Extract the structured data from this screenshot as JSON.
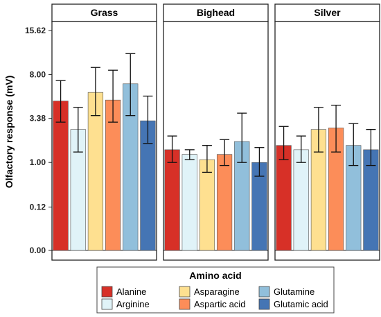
{
  "chart_data": {
    "type": "bar",
    "facets": [
      "Grass",
      "Bighead",
      "Silver"
    ],
    "ylabel": "Olfactory response (mV)",
    "y_scale": "transformed (ticks as printed)",
    "y_ticks": [
      "0.00",
      "0.12",
      "1.00",
      "3.38",
      "8.00",
      "15.62"
    ],
    "legend_title": "Amino acid",
    "legend_position": "bottom",
    "series": [
      {
        "name": "Alanine",
        "color": "#d73027"
      },
      {
        "name": "Arginine",
        "color": "#e0f3f8"
      },
      {
        "name": "Asparagine",
        "color": "#fee090"
      },
      {
        "name": "Aspartic acid",
        "color": "#fc8d59"
      },
      {
        "name": "Glutamine",
        "color": "#91bfdb"
      },
      {
        "name": "Glutamic acid",
        "color": "#4575b4"
      }
    ],
    "data": {
      "Grass": [
        {
          "amino_acid": "Alanine",
          "mean": 4.9,
          "error_low": 3.1,
          "error_high": 7.2
        },
        {
          "amino_acid": "Arginine",
          "mean": 2.6,
          "error_low": 1.4,
          "error_high": 4.3
        },
        {
          "amino_acid": "Asparagine",
          "mean": 5.8,
          "error_low": 3.6,
          "error_high": 9.0
        },
        {
          "amino_acid": "Aspartic acid",
          "mean": 5.0,
          "error_low": 3.1,
          "error_high": 8.6
        },
        {
          "amino_acid": "Glutamine",
          "mean": 6.8,
          "error_low": 3.6,
          "error_high": 11.2
        },
        {
          "amino_acid": "Glutamic acid",
          "mean": 3.2,
          "error_low": 1.8,
          "error_high": 5.4
        }
      ],
      "Bighead": [
        {
          "amino_acid": "Alanine",
          "mean": 1.5,
          "error_low": 1.0,
          "error_high": 2.2
        },
        {
          "amino_acid": "Arginine",
          "mean": 1.3,
          "error_low": 1.1,
          "error_high": 1.5
        },
        {
          "amino_acid": "Asparagine",
          "mean": 1.1,
          "error_low": 0.7,
          "error_high": 1.7
        },
        {
          "amino_acid": "Aspartic acid",
          "mean": 1.3,
          "error_low": 0.9,
          "error_high": 2.0
        },
        {
          "amino_acid": "Glutamine",
          "mean": 1.9,
          "error_low": 1.0,
          "error_high": 3.8
        },
        {
          "amino_acid": "Glutamic acid",
          "mean": 1.0,
          "error_low": 0.6,
          "error_high": 1.6
        }
      ],
      "Silver": [
        {
          "amino_acid": "Alanine",
          "mean": 1.7,
          "error_low": 1.1,
          "error_high": 2.8
        },
        {
          "amino_acid": "Arginine",
          "mean": 1.5,
          "error_low": 1.0,
          "error_high": 2.2
        },
        {
          "amino_acid": "Asparagine",
          "mean": 2.6,
          "error_low": 1.4,
          "error_high": 4.3
        },
        {
          "amino_acid": "Aspartic acid",
          "mean": 2.7,
          "error_low": 1.4,
          "error_high": 4.5
        },
        {
          "amino_acid": "Glutamine",
          "mean": 1.7,
          "error_low": 0.9,
          "error_high": 3.0
        },
        {
          "amino_acid": "Glutamic acid",
          "mean": 1.5,
          "error_low": 0.9,
          "error_high": 2.6
        }
      ]
    }
  }
}
